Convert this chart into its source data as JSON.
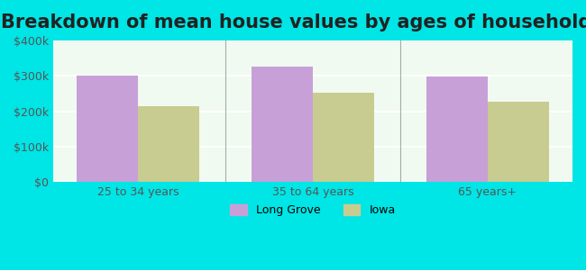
{
  "title": "Breakdown of mean house values by ages of householders",
  "categories": [
    "25 to 34 years",
    "35 to 64 years",
    "65 years+"
  ],
  "series": {
    "Long Grove": [
      300000,
      325000,
      298000
    ],
    "Iowa": [
      215000,
      253000,
      228000
    ]
  },
  "colors": {
    "Long Grove": "#c8a0d8",
    "Iowa": "#c8cc90"
  },
  "ylim": [
    0,
    400000
  ],
  "yticks": [
    0,
    100000,
    200000,
    300000,
    400000
  ],
  "ytick_labels": [
    "$0",
    "$100k",
    "$200k",
    "$300k",
    "$400k"
  ],
  "background_outer": "#00e5e5",
  "background_inner": "#f0faf0",
  "title_fontsize": 15,
  "bar_width": 0.35,
  "legend_labels": [
    "Long Grove",
    "Iowa"
  ],
  "grid_color": "#ffffff",
  "axis_line_color": "#cccccc"
}
